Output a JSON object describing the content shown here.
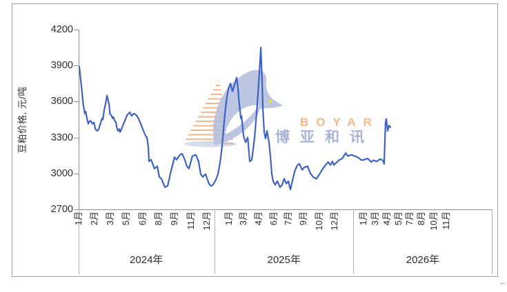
{
  "chart": {
    "y_axis_title": "豆粕价格, 元/吨",
    "y_ticks": [
      "4200",
      "3900",
      "3600",
      "3300",
      "3000",
      "2700"
    ],
    "years": [
      {
        "label": "2024年",
        "center_pct": 16.4,
        "months": [
          {
            "label": "1月",
            "pct": 0.0
          },
          {
            "label": "2月",
            "pct": 3.84
          },
          {
            "label": "3月",
            "pct": 7.68
          },
          {
            "label": "5月",
            "pct": 11.52
          },
          {
            "label": "6月",
            "pct": 15.53
          },
          {
            "label": "8月",
            "pct": 19.37
          },
          {
            "label": "9月",
            "pct": 23.21
          },
          {
            "label": "11月",
            "pct": 27.21
          },
          {
            "label": "12月",
            "pct": 31.05
          }
        ]
      },
      {
        "label": "2025年",
        "center_pct": 49.7,
        "months": [
          {
            "label": "1月",
            "pct": 36.39
          },
          {
            "label": "3月",
            "pct": 39.9
          },
          {
            "label": "4月",
            "pct": 43.57
          },
          {
            "label": "6月",
            "pct": 47.25
          },
          {
            "label": "7月",
            "pct": 50.75
          },
          {
            "label": "9月",
            "pct": 54.42
          },
          {
            "label": "10月",
            "pct": 58.26
          },
          {
            "label": "12月",
            "pct": 61.94
          }
        ]
      },
      {
        "label": "2026年",
        "center_pct": 83.3,
        "months": [
          {
            "label": "1月",
            "pct": 68.95
          },
          {
            "label": "3月",
            "pct": 71.79
          },
          {
            "label": "4月",
            "pct": 74.62
          },
          {
            "label": "5月",
            "pct": 77.46
          },
          {
            "label": "7月",
            "pct": 80.13
          },
          {
            "label": "8月",
            "pct": 82.97
          },
          {
            "label": "10月",
            "pct": 85.98
          },
          {
            "label": "11月",
            "pct": 88.98
          }
        ]
      }
    ],
    "separators_pct": [
      0,
      32.89,
      66.61,
      100
    ]
  },
  "watermark": {
    "brand_en": "BOYAR",
    "brand_cn": "博亚和讯"
  },
  "nav_arrow": "←",
  "colors": {
    "line": "#3e62c4",
    "axis": "#8c8c8c",
    "frame_border": "#9f9f9f",
    "brand_orange": "#f4b98a",
    "brand_blue": "#a9b3d7",
    "bird": "#b5bfde",
    "stripe": "#f2a56e",
    "eye": "#e8de5a"
  },
  "chart_data": {
    "type": "line",
    "series_name": "豆粕价格",
    "unit": "元/吨",
    "title": "",
    "ylabel": "豆粕价格, 元/吨",
    "ylim": [
      2700,
      4200
    ],
    "y_tick_step": 300,
    "x_years": [
      "2024年",
      "2025年",
      "2026年"
    ],
    "x_unit": "months elapsed since 2024-01-01 (axis spans 36 months: Jan 2024 – Dec 2026, data ends ~Apr 2026)",
    "x_total_months": 36,
    "grid": false,
    "legend": false,
    "points": [
      [
        0.0,
        3890
      ],
      [
        0.1,
        3800
      ],
      [
        0.22,
        3690
      ],
      [
        0.35,
        3570
      ],
      [
        0.48,
        3500
      ],
      [
        0.55,
        3515
      ],
      [
        0.66,
        3460
      ],
      [
        0.78,
        3415
      ],
      [
        0.85,
        3430
      ],
      [
        0.97,
        3440
      ],
      [
        1.15,
        3415
      ],
      [
        1.27,
        3425
      ],
      [
        1.4,
        3370
      ],
      [
        1.57,
        3355
      ],
      [
        1.7,
        3370
      ],
      [
        1.76,
        3395
      ],
      [
        1.87,
        3425
      ],
      [
        1.99,
        3460
      ],
      [
        2.05,
        3450
      ],
      [
        2.17,
        3530
      ],
      [
        2.29,
        3585
      ],
      [
        2.41,
        3650
      ],
      [
        2.53,
        3600
      ],
      [
        2.6,
        3570
      ],
      [
        2.66,
        3500
      ],
      [
        2.78,
        3485
      ],
      [
        2.9,
        3460
      ],
      [
        2.96,
        3470
      ],
      [
        3.08,
        3440
      ],
      [
        3.2,
        3425
      ],
      [
        3.26,
        3385
      ],
      [
        3.38,
        3355
      ],
      [
        3.49,
        3370
      ],
      [
        3.55,
        3345
      ],
      [
        3.67,
        3370
      ],
      [
        3.79,
        3400
      ],
      [
        3.97,
        3440
      ],
      [
        4.09,
        3470
      ],
      [
        4.15,
        3485
      ],
      [
        4.39,
        3510
      ],
      [
        4.57,
        3480
      ],
      [
        4.75,
        3500
      ],
      [
        4.99,
        3485
      ],
      [
        5.17,
        3455
      ],
      [
        5.35,
        3415
      ],
      [
        5.59,
        3355
      ],
      [
        5.77,
        3315
      ],
      [
        5.89,
        3300
      ],
      [
        6.01,
        3225
      ],
      [
        6.07,
        3100
      ],
      [
        6.25,
        3115
      ],
      [
        6.55,
        3040
      ],
      [
        6.79,
        3060
      ],
      [
        6.97,
        2970
      ],
      [
        7.15,
        2955
      ],
      [
        7.45,
        2885
      ],
      [
        7.69,
        2895
      ],
      [
        7.99,
        3020
      ],
      [
        8.29,
        3135
      ],
      [
        8.47,
        3115
      ],
      [
        8.77,
        3155
      ],
      [
        8.95,
        3165
      ],
      [
        9.19,
        3115
      ],
      [
        9.37,
        3060
      ],
      [
        9.55,
        3040
      ],
      [
        9.85,
        3145
      ],
      [
        10.15,
        3155
      ],
      [
        10.39,
        3100
      ],
      [
        10.57,
        2995
      ],
      [
        10.75,
        2970
      ],
      [
        10.99,
        2995
      ],
      [
        11.29,
        2915
      ],
      [
        11.47,
        2895
      ],
      [
        11.65,
        2905
      ],
      [
        11.89,
        2945
      ],
      [
        12.07,
        2990
      ],
      [
        12.25,
        3080
      ],
      [
        12.43,
        3220
      ],
      [
        12.61,
        3420
      ],
      [
        12.79,
        3590
      ],
      [
        12.97,
        3700
      ],
      [
        13.17,
        3750
      ],
      [
        13.35,
        3685
      ],
      [
        13.53,
        3740
      ],
      [
        13.71,
        3800
      ],
      [
        13.83,
        3710
      ],
      [
        13.89,
        3625
      ],
      [
        14.07,
        3460
      ],
      [
        14.13,
        3480
      ],
      [
        14.31,
        3310
      ],
      [
        14.49,
        3260
      ],
      [
        14.67,
        3300
      ],
      [
        14.85,
        3100
      ],
      [
        15.03,
        3115
      ],
      [
        15.27,
        3300
      ],
      [
        15.51,
        3585
      ],
      [
        15.69,
        3850
      ],
      [
        15.81,
        4050
      ],
      [
        15.93,
        3750
      ],
      [
        15.99,
        3530
      ],
      [
        16.11,
        3340
      ],
      [
        16.23,
        3290
      ],
      [
        16.35,
        3355
      ],
      [
        16.53,
        3260
      ],
      [
        16.65,
        3145
      ],
      [
        16.77,
        2995
      ],
      [
        16.89,
        2935
      ],
      [
        17.07,
        2905
      ],
      [
        17.25,
        2935
      ],
      [
        17.49,
        2885
      ],
      [
        17.67,
        2905
      ],
      [
        17.85,
        2955
      ],
      [
        18.03,
        2915
      ],
      [
        18.21,
        2935
      ],
      [
        18.39,
        2865
      ],
      [
        18.69,
        2990
      ],
      [
        18.81,
        3030
      ],
      [
        19.01,
        3070
      ],
      [
        19.17,
        3080
      ],
      [
        19.41,
        3030
      ],
      [
        19.59,
        3050
      ],
      [
        19.89,
        3060
      ],
      [
        20.13,
        3000
      ],
      [
        20.37,
        2970
      ],
      [
        20.67,
        2955
      ],
      [
        20.97,
        3000
      ],
      [
        21.15,
        3030
      ],
      [
        21.45,
        3070
      ],
      [
        21.69,
        3095
      ],
      [
        21.87,
        3070
      ],
      [
        22.05,
        3100
      ],
      [
        22.17,
        3070
      ],
      [
        22.61,
        3110
      ],
      [
        22.91,
        3125
      ],
      [
        23.21,
        3170
      ],
      [
        23.39,
        3145
      ],
      [
        23.69,
        3155
      ],
      [
        23.99,
        3145
      ],
      [
        24.23,
        3135
      ],
      [
        24.41,
        3125
      ],
      [
        24.59,
        3110
      ],
      [
        24.83,
        3115
      ],
      [
        25.13,
        3125
      ],
      [
        25.43,
        3095
      ],
      [
        25.61,
        3110
      ],
      [
        25.91,
        3100
      ],
      [
        26.21,
        3120
      ],
      [
        26.45,
        3110
      ],
      [
        26.56,
        3080
      ],
      [
        26.68,
        3425
      ],
      [
        26.74,
        3455
      ],
      [
        26.86,
        3355
      ],
      [
        26.98,
        3400
      ],
      [
        27.1,
        3385
      ]
    ]
  }
}
